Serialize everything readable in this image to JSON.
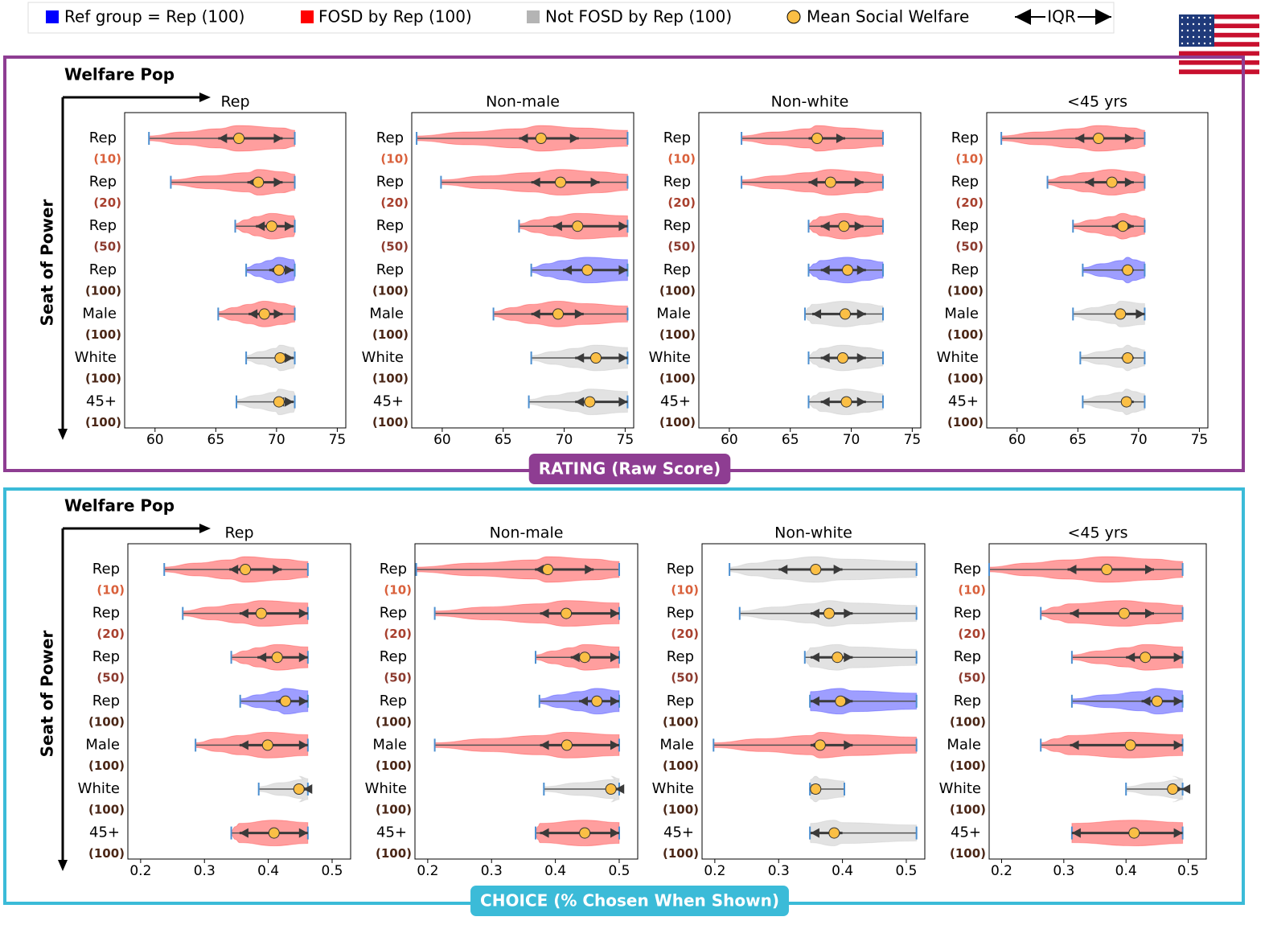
{
  "legend": {
    "items": [
      {
        "name": "Ref group = Rep (100)",
        "color": "#0000ff",
        "marker": "square"
      },
      {
        "name": "FOSD by Rep (100)",
        "color": "#ff0000",
        "marker": "square"
      },
      {
        "name": "Not FOSD by Rep (100)",
        "color": "#b4b4b4",
        "marker": "square"
      },
      {
        "name": "Mean Social Welfare",
        "color": "#fbbf45",
        "marker": "circle"
      },
      {
        "name": "IQR",
        "color": "#000000",
        "marker": "double-arrow"
      }
    ]
  },
  "sections": [
    {
      "title": "RATING (Raw Score)",
      "color": "#8e3d92",
      "x_axis_label": "Welfare Pop",
      "y_axis_label": "Seat of Power"
    },
    {
      "title": "CHOICE (% Chosen When Shown)",
      "color": "#3bbbd8",
      "x_axis_label": "Welfare Pop",
      "y_axis_label": "Seat of Power"
    }
  ],
  "chart_data": [
    {
      "type": "violin",
      "title": "Rep",
      "categories": [
        "Rep",
        "Rep",
        "Rep",
        "Rep",
        "Male",
        "White",
        "45+"
      ],
      "sublabels": [
        "(10)",
        "(20)",
        "(50)",
        "(100)",
        "(100)",
        "(100)",
        "(100)"
      ],
      "sublabel_colors": [
        "#d9603b",
        "#a8402e",
        "#8b3a2e",
        "#4a2616",
        "#4a2616",
        "#4a2616",
        "#4a2616"
      ],
      "colors": [
        "#ff0000",
        "#ff0000",
        "#ff0000",
        "#0000ff",
        "#ff0000",
        "#b4b4b4",
        "#b4b4b4"
      ],
      "min": [
        59.5,
        61.3,
        66.6,
        67.5,
        65.2,
        67.5,
        66.7
      ],
      "q1": [
        65.2,
        67.6,
        68.3,
        69.4,
        67.7,
        69.9,
        69.9
      ],
      "mean": [
        66.9,
        68.5,
        69.6,
        70.2,
        69.0,
        70.3,
        70.2
      ],
      "q3": [
        70.5,
        70.5,
        71.4,
        71.4,
        70.5,
        71.4,
        71.4
      ],
      "max": [
        71.5,
        71.5,
        71.5,
        71.5,
        71.5,
        71.5,
        71.5
      ],
      "xlim": [
        57.5,
        75.7
      ],
      "xticks": [
        60,
        65,
        70,
        75
      ]
    },
    {
      "type": "violin",
      "title": "Non-male",
      "categories": [
        "Rep",
        "Rep",
        "Rep",
        "Rep",
        "Male",
        "White",
        "45+"
      ],
      "sublabels": [
        "(10)",
        "(20)",
        "(50)",
        "(100)",
        "(100)",
        "(100)",
        "(100)"
      ],
      "sublabel_colors": [
        "#d9603b",
        "#a8402e",
        "#8b3a2e",
        "#4a2616",
        "#4a2616",
        "#4a2616",
        "#4a2616"
      ],
      "colors": [
        "#ff0000",
        "#ff0000",
        "#ff0000",
        "#0000ff",
        "#ff0000",
        "#b4b4b4",
        "#b4b4b4"
      ],
      "min": [
        57.9,
        59.9,
        66.3,
        67.3,
        64.2,
        67.3,
        67.1
      ],
      "q1": [
        66.3,
        67.3,
        69.1,
        69.9,
        67.3,
        70.9,
        70.9
      ],
      "mean": [
        68.1,
        69.7,
        71.1,
        71.9,
        69.5,
        72.6,
        72.1
      ],
      "q3": [
        71.2,
        72.9,
        75.2,
        75.2,
        71.6,
        75.2,
        75.2
      ],
      "max": [
        75.2,
        75.2,
        75.2,
        75.2,
        75.2,
        75.2,
        75.2
      ],
      "xlim": [
        57.5,
        75.7
      ],
      "xticks": [
        60,
        65,
        70,
        75
      ]
    },
    {
      "type": "violin",
      "title": "Non-white",
      "categories": [
        "Rep",
        "Rep",
        "Rep",
        "Rep",
        "Male",
        "White",
        "45+"
      ],
      "sublabels": [
        "(10)",
        "(20)",
        "(50)",
        "(100)",
        "(100)",
        "(100)",
        "(100)"
      ],
      "sublabel_colors": [
        "#d9603b",
        "#a8402e",
        "#8b3a2e",
        "#4a2616",
        "#4a2616",
        "#4a2616",
        "#4a2616"
      ],
      "colors": [
        "#ff0000",
        "#ff0000",
        "#ff0000",
        "#0000ff",
        "#b4b4b4",
        "#b4b4b4",
        "#b4b4b4"
      ],
      "min": [
        61.0,
        61.0,
        66.5,
        66.5,
        66.2,
        66.5,
        66.5
      ],
      "q1": [
        66.5,
        66.5,
        67.5,
        67.5,
        66.8,
        67.5,
        67.5
      ],
      "mean": [
        67.2,
        68.3,
        69.4,
        69.7,
        69.5,
        69.3,
        69.6
      ],
      "q3": [
        69.5,
        71.0,
        71.0,
        71.2,
        71.2,
        71.2,
        71.2
      ],
      "max": [
        72.6,
        72.6,
        72.6,
        72.6,
        72.6,
        72.6,
        72.6
      ],
      "xlim": [
        57.5,
        75.7
      ],
      "xticks": [
        60,
        65,
        70,
        75
      ]
    },
    {
      "type": "violin",
      "title": "<45 yrs",
      "categories": [
        "Rep",
        "Rep",
        "Rep",
        "Rep",
        "Male",
        "White",
        "45+"
      ],
      "sublabels": [
        "(10)",
        "(20)",
        "(50)",
        "(100)",
        "(100)",
        "(100)",
        "(100)"
      ],
      "sublabel_colors": [
        "#d9603b",
        "#a8402e",
        "#8b3a2e",
        "#4a2616",
        "#4a2616",
        "#4a2616",
        "#4a2616"
      ],
      "colors": [
        "#ff0000",
        "#ff0000",
        "#ff0000",
        "#0000ff",
        "#b4b4b4",
        "#b4b4b4",
        "#b4b4b4"
      ],
      "min": [
        58.7,
        62.5,
        64.6,
        65.4,
        64.6,
        65.2,
        65.4
      ],
      "q1": [
        64.8,
        65.6,
        67.8,
        68.6,
        68.0,
        68.6,
        68.6
      ],
      "mean": [
        66.7,
        67.8,
        68.7,
        69.1,
        68.5,
        69.1,
        69.0
      ],
      "q3": [
        69.6,
        69.6,
        69.6,
        69.6,
        70.5,
        69.6,
        69.6
      ],
      "max": [
        70.5,
        70.5,
        70.5,
        70.5,
        70.5,
        70.5,
        70.5
      ],
      "xlim": [
        57.5,
        75.7
      ],
      "xticks": [
        60,
        65,
        70,
        75
      ]
    },
    {
      "type": "violin",
      "title": "Rep",
      "categories": [
        "Rep",
        "Rep",
        "Rep",
        "Rep",
        "Male",
        "White",
        "45+"
      ],
      "sublabels": [
        "(10)",
        "(20)",
        "(50)",
        "(100)",
        "(100)",
        "(100)",
        "(100)"
      ],
      "sublabel_colors": [
        "#d9603b",
        "#a8402e",
        "#8b3a2e",
        "#4a2616",
        "#4a2616",
        "#4a2616",
        "#4a2616"
      ],
      "colors": [
        "#ff0000",
        "#ff0000",
        "#ff0000",
        "#0000ff",
        "#ff0000",
        "#b4b4b4",
        "#ff0000"
      ],
      "min": [
        0.237,
        0.266,
        0.342,
        0.356,
        0.286,
        0.385,
        0.342
      ],
      "q1": [
        0.339,
        0.355,
        0.383,
        0.412,
        0.355,
        0.455,
        0.355
      ],
      "mean": [
        0.364,
        0.389,
        0.414,
        0.427,
        0.399,
        0.448,
        0.409
      ],
      "q3": [
        0.421,
        0.462,
        0.462,
        0.462,
        0.462,
        0.462,
        0.462
      ],
      "max": [
        0.462,
        0.462,
        0.462,
        0.462,
        0.462,
        0.462,
        0.462
      ],
      "xlim": [
        0.18,
        0.529
      ],
      "xticks": [
        0.2,
        0.3,
        0.4,
        0.5
      ]
    },
    {
      "type": "violin",
      "title": "Non-male",
      "categories": [
        "Rep",
        "Rep",
        "Rep",
        "Rep",
        "Male",
        "White",
        "45+"
      ],
      "sublabels": [
        "(10)",
        "(20)",
        "(50)",
        "(100)",
        "(100)",
        "(100)",
        "(100)"
      ],
      "sublabel_colors": [
        "#d9603b",
        "#a8402e",
        "#8b3a2e",
        "#4a2616",
        "#4a2616",
        "#4a2616",
        "#4a2616"
      ],
      "colors": [
        "#ff0000",
        "#ff0000",
        "#ff0000",
        "#0000ff",
        "#ff0000",
        "#b4b4b4",
        "#ff0000"
      ],
      "min": [
        0.182,
        0.211,
        0.369,
        0.375,
        0.211,
        0.382,
        0.369
      ],
      "q1": [
        0.368,
        0.376,
        0.424,
        0.437,
        0.376,
        0.494,
        0.376
      ],
      "mean": [
        0.388,
        0.417,
        0.446,
        0.465,
        0.418,
        0.487,
        0.446
      ],
      "q3": [
        0.46,
        0.5,
        0.5,
        0.5,
        0.5,
        0.5,
        0.5
      ],
      "max": [
        0.5,
        0.5,
        0.5,
        0.5,
        0.5,
        0.5,
        0.5
      ],
      "xlim": [
        0.18,
        0.529
      ],
      "xticks": [
        0.2,
        0.3,
        0.4,
        0.5
      ]
    },
    {
      "type": "violin",
      "title": "Non-white",
      "categories": [
        "Rep",
        "Rep",
        "Rep",
        "Rep",
        "Male",
        "White",
        "45+"
      ],
      "sublabels": [
        "(10)",
        "(20)",
        "(50)",
        "(100)",
        "(100)",
        "(100)",
        "(100)"
      ],
      "sublabel_colors": [
        "#d9603b",
        "#a8402e",
        "#8b3a2e",
        "#4a2616",
        "#4a2616",
        "#4a2616",
        "#4a2616"
      ],
      "colors": [
        "#b4b4b4",
        "#b4b4b4",
        "#b4b4b4",
        "#0000ff",
        "#ff0000",
        "#b4b4b4",
        "#b4b4b4"
      ],
      "min": [
        0.223,
        0.239,
        0.341,
        0.349,
        0.198,
        0.349,
        0.349
      ],
      "q1": [
        0.3,
        0.35,
        0.35,
        0.35,
        0.35,
        0.35,
        0.35
      ],
      "mean": [
        0.358,
        0.379,
        0.392,
        0.397,
        0.365,
        0.358,
        0.387
      ],
      "q3": [
        0.4,
        0.416,
        0.416,
        0.416,
        0.416,
        0.365,
        0.4
      ],
      "max": [
        0.516,
        0.516,
        0.516,
        0.516,
        0.516,
        0.403,
        0.516
      ],
      "xlim": [
        0.18,
        0.529
      ],
      "xticks": [
        0.2,
        0.3,
        0.4,
        0.5
      ]
    },
    {
      "type": "violin",
      "title": "<45 yrs",
      "categories": [
        "Rep",
        "Rep",
        "Rep",
        "Rep",
        "Male",
        "White",
        "45+"
      ],
      "sublabels": [
        "(10)",
        "(20)",
        "(50)",
        "(100)",
        "(100)",
        "(100)",
        "(100)"
      ],
      "sublabel_colors": [
        "#d9603b",
        "#a8402e",
        "#8b3a2e",
        "#4a2616",
        "#4a2616",
        "#4a2616",
        "#4a2616"
      ],
      "colors": [
        "#ff0000",
        "#ff0000",
        "#ff0000",
        "#0000ff",
        "#ff0000",
        "#b4b4b4",
        "#ff0000"
      ],
      "min": [
        0.18,
        0.263,
        0.313,
        0.313,
        0.263,
        0.4,
        0.313
      ],
      "q1": [
        0.306,
        0.31,
        0.4,
        0.425,
        0.31,
        0.489,
        0.313
      ],
      "mean": [
        0.369,
        0.397,
        0.431,
        0.45,
        0.407,
        0.475,
        0.413
      ],
      "q3": [
        0.445,
        0.445,
        0.491,
        0.491,
        0.491,
        0.491,
        0.491
      ],
      "max": [
        0.491,
        0.491,
        0.491,
        0.491,
        0.491,
        0.491,
        0.491
      ],
      "xlim": [
        0.18,
        0.529
      ],
      "xticks": [
        0.2,
        0.3,
        0.4,
        0.5
      ]
    }
  ]
}
